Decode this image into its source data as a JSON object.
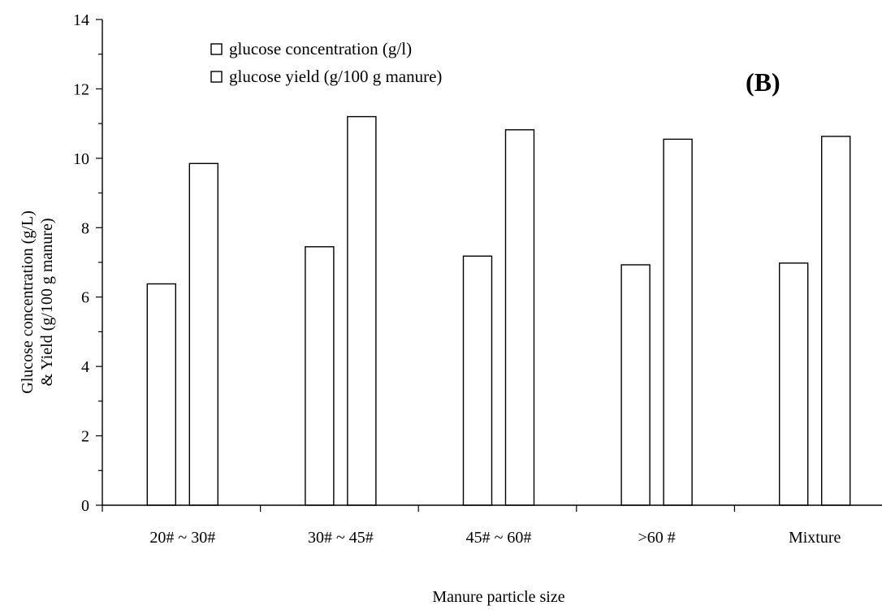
{
  "chart_data": {
    "type": "bar",
    "panel_label": "(B)",
    "categories": [
      "20# ~ 30#",
      "30# ~ 45#",
      "45# ~ 60#",
      ">60 #",
      "Mixture"
    ],
    "series": [
      {
        "name": "glucose concentration (g/l)",
        "values": [
          6.38,
          7.45,
          7.18,
          6.93,
          6.98
        ],
        "color": "#ffffff"
      },
      {
        "name": "glucose yield (g/100 g manure)",
        "values": [
          9.85,
          11.2,
          10.82,
          10.55,
          10.63
        ],
        "color": "#ffffff"
      }
    ],
    "xlabel": "Manure particle size",
    "ylabel_line1": "Glucose concentration (g/L)",
    "ylabel_line2": "& Yield (g/100 g manure)",
    "ylim": [
      0,
      14
    ],
    "yticks": [
      "0",
      "2",
      "4",
      "6",
      "8",
      "10",
      "12",
      "14"
    ],
    "legend_position": "top-left",
    "grid": false
  }
}
